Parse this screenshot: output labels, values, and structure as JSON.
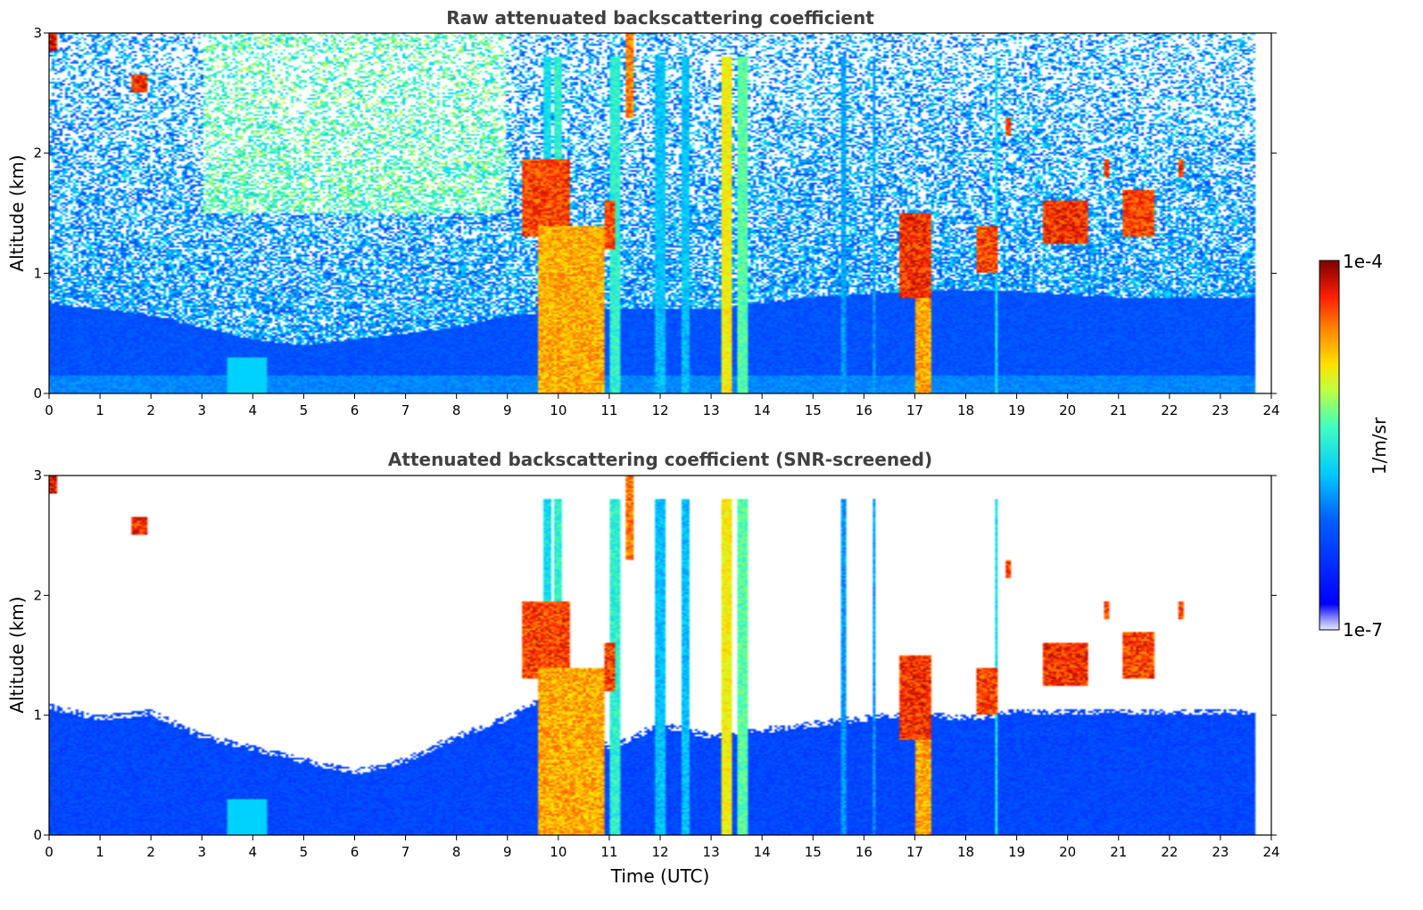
{
  "chart_data": [
    {
      "type": "heatmap",
      "title": "Raw attenuated backscattering coefficient",
      "xlabel": "",
      "ylabel": "Altitude (km)",
      "xlim": [
        0,
        24
      ],
      "ylim": [
        0,
        3
      ],
      "x_ticks": [
        "0",
        "1",
        "2",
        "3",
        "4",
        "5",
        "6",
        "7",
        "8",
        "9",
        "10",
        "11",
        "12",
        "13",
        "14",
        "15",
        "16",
        "17",
        "18",
        "19",
        "20",
        "21",
        "22",
        "23",
        "24"
      ],
      "y_ticks": [
        "0",
        "1",
        "2",
        "3"
      ],
      "data_end_hour": 23.7,
      "boundary_layer_top_km": [
        [
          0,
          0.75
        ],
        [
          1,
          0.7
        ],
        [
          2,
          0.65
        ],
        [
          3,
          0.55
        ],
        [
          4,
          0.45
        ],
        [
          5,
          0.4
        ],
        [
          6,
          0.45
        ],
        [
          7,
          0.5
        ],
        [
          8,
          0.55
        ],
        [
          9,
          0.65
        ],
        [
          11,
          0.7
        ],
        [
          13,
          0.7
        ],
        [
          15,
          0.8
        ],
        [
          17,
          0.85
        ],
        [
          19,
          0.85
        ],
        [
          21,
          0.8
        ],
        [
          23.7,
          0.8
        ]
      ],
      "cloud_layers": [
        {
          "t0": 0.0,
          "t1": 0.15,
          "z0": 2.85,
          "z1": 3.0,
          "v": 1.0
        },
        {
          "t0": 1.6,
          "t1": 1.95,
          "z0": 2.5,
          "z1": 2.65,
          "v": 0.97
        },
        {
          "t0": 9.3,
          "t1": 10.2,
          "z0": 1.3,
          "z1": 1.95,
          "v": 0.95
        },
        {
          "t0": 9.6,
          "t1": 10.9,
          "z0": 0.0,
          "z1": 1.4,
          "v": 0.85
        },
        {
          "t0": 10.9,
          "t1": 11.1,
          "z0": 1.2,
          "z1": 1.6,
          "v": 0.95
        },
        {
          "t0": 11.3,
          "t1": 11.5,
          "z0": 2.3,
          "z1": 3.0,
          "v": 0.9
        },
        {
          "t0": 16.7,
          "t1": 17.3,
          "z0": 0.8,
          "z1": 1.5,
          "v": 0.97
        },
        {
          "t0": 17.0,
          "t1": 17.3,
          "z0": 0.0,
          "z1": 0.8,
          "v": 0.85
        },
        {
          "t0": 18.2,
          "t1": 18.6,
          "z0": 1.0,
          "z1": 1.4,
          "v": 0.95
        },
        {
          "t0": 19.5,
          "t1": 20.4,
          "z0": 1.25,
          "z1": 1.6,
          "v": 0.97
        },
        {
          "t0": 21.1,
          "t1": 21.7,
          "z0": 1.3,
          "z1": 1.7,
          "v": 0.95
        },
        {
          "t0": 20.7,
          "t1": 20.8,
          "z0": 1.8,
          "z1": 1.95,
          "v": 0.95
        },
        {
          "t0": 22.2,
          "t1": 22.3,
          "z0": 1.8,
          "z1": 1.95,
          "v": 0.95
        },
        {
          "t0": 18.8,
          "t1": 18.9,
          "z0": 2.15,
          "z1": 2.3,
          "v": 0.95
        }
      ],
      "precip_shafts": [
        {
          "t": 9.8,
          "w": 0.08,
          "v": 0.5
        },
        {
          "t": 10.0,
          "w": 0.08,
          "v": 0.55
        },
        {
          "t": 11.1,
          "w": 0.1,
          "v": 0.55
        },
        {
          "t": 12.0,
          "w": 0.08,
          "v": 0.45
        },
        {
          "t": 12.5,
          "w": 0.08,
          "v": 0.45
        },
        {
          "t": 13.3,
          "w": 0.12,
          "v": 0.75
        },
        {
          "t": 13.6,
          "w": 0.1,
          "v": 0.6
        },
        {
          "t": 15.6,
          "w": 0.05,
          "v": 0.4
        },
        {
          "t": 16.2,
          "w": 0.05,
          "v": 0.4
        },
        {
          "t": 18.6,
          "w": 0.05,
          "v": 0.5
        }
      ]
    },
    {
      "type": "heatmap",
      "title": "Attenuated backscattering coefficient (SNR-screened)",
      "xlabel": "Time (UTC)",
      "ylabel": "Altitude (km)",
      "xlim": [
        0,
        24
      ],
      "ylim": [
        0,
        3
      ],
      "x_ticks": [
        "0",
        "1",
        "2",
        "3",
        "4",
        "5",
        "6",
        "7",
        "8",
        "9",
        "10",
        "11",
        "12",
        "13",
        "14",
        "15",
        "16",
        "17",
        "18",
        "19",
        "20",
        "21",
        "22",
        "23",
        "24"
      ],
      "y_ticks": [
        "0",
        "1",
        "2",
        "3"
      ],
      "data_end_hour": 23.7,
      "screened_top_km": [
        [
          0,
          1.05
        ],
        [
          1,
          0.95
        ],
        [
          2,
          1.0
        ],
        [
          3,
          0.8
        ],
        [
          4,
          0.7
        ],
        [
          5,
          0.6
        ],
        [
          6,
          0.5
        ],
        [
          7,
          0.6
        ],
        [
          8,
          0.8
        ],
        [
          9,
          0.95
        ],
        [
          10,
          1.2
        ],
        [
          11,
          0.7
        ],
        [
          12,
          0.9
        ],
        [
          13,
          0.8
        ],
        [
          14,
          0.85
        ],
        [
          15,
          0.9
        ],
        [
          16,
          0.95
        ],
        [
          17,
          1.0
        ],
        [
          18,
          0.95
        ],
        [
          19,
          1.0
        ],
        [
          20,
          1.0
        ],
        [
          21,
          1.0
        ],
        [
          22,
          1.0
        ],
        [
          23.7,
          1.0
        ]
      ]
    }
  ],
  "colorbar": {
    "label": "1/m/sr",
    "max_label": "1e-4",
    "min_label": "1e-7",
    "colormap": "jet"
  }
}
